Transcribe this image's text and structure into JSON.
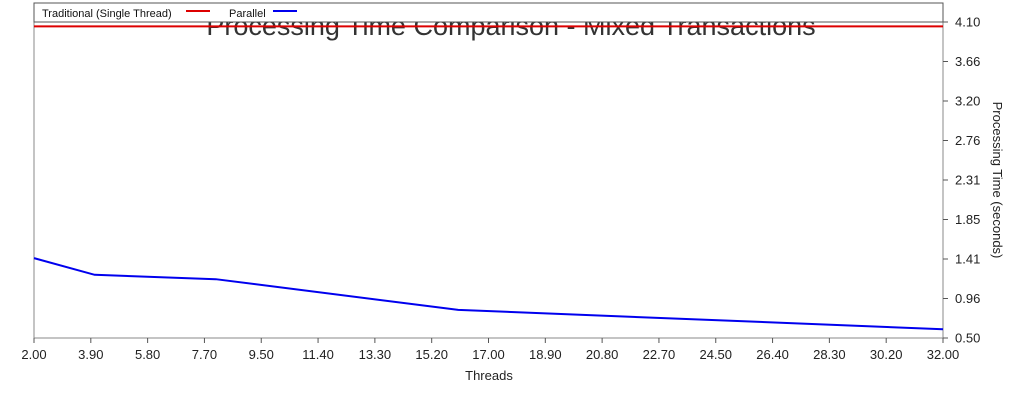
{
  "chart_data": {
    "type": "line",
    "title": "Processing Time Comparison - Mixed Transactions",
    "xlabel": "Threads",
    "ylabel": "Processing Time (seconds)",
    "xlim": [
      2,
      32
    ],
    "ylim": [
      0.5,
      4.1
    ],
    "x_ticks": [
      "2.00",
      "3.90",
      "5.80",
      "7.70",
      "9.50",
      "11.40",
      "13.30",
      "15.20",
      "17.00",
      "18.90",
      "20.80",
      "22.70",
      "24.50",
      "26.40",
      "28.30",
      "30.20",
      "32.00"
    ],
    "y_ticks": [
      "0.50",
      "0.96",
      "1.41",
      "1.85",
      "2.31",
      "2.76",
      "3.20",
      "3.66",
      "4.10"
    ],
    "y_axis_side": "right",
    "legend_position": "top-left",
    "series": [
      {
        "name": "Traditional (Single Thread)",
        "color": "#dd0000",
        "x": [
          2,
          32
        ],
        "y": [
          4.05,
          4.05
        ]
      },
      {
        "name": "Parallel",
        "color": "#0000ee",
        "x": [
          2,
          4,
          8,
          16,
          32
        ],
        "y": [
          1.41,
          1.22,
          1.17,
          0.82,
          0.6
        ]
      }
    ]
  }
}
